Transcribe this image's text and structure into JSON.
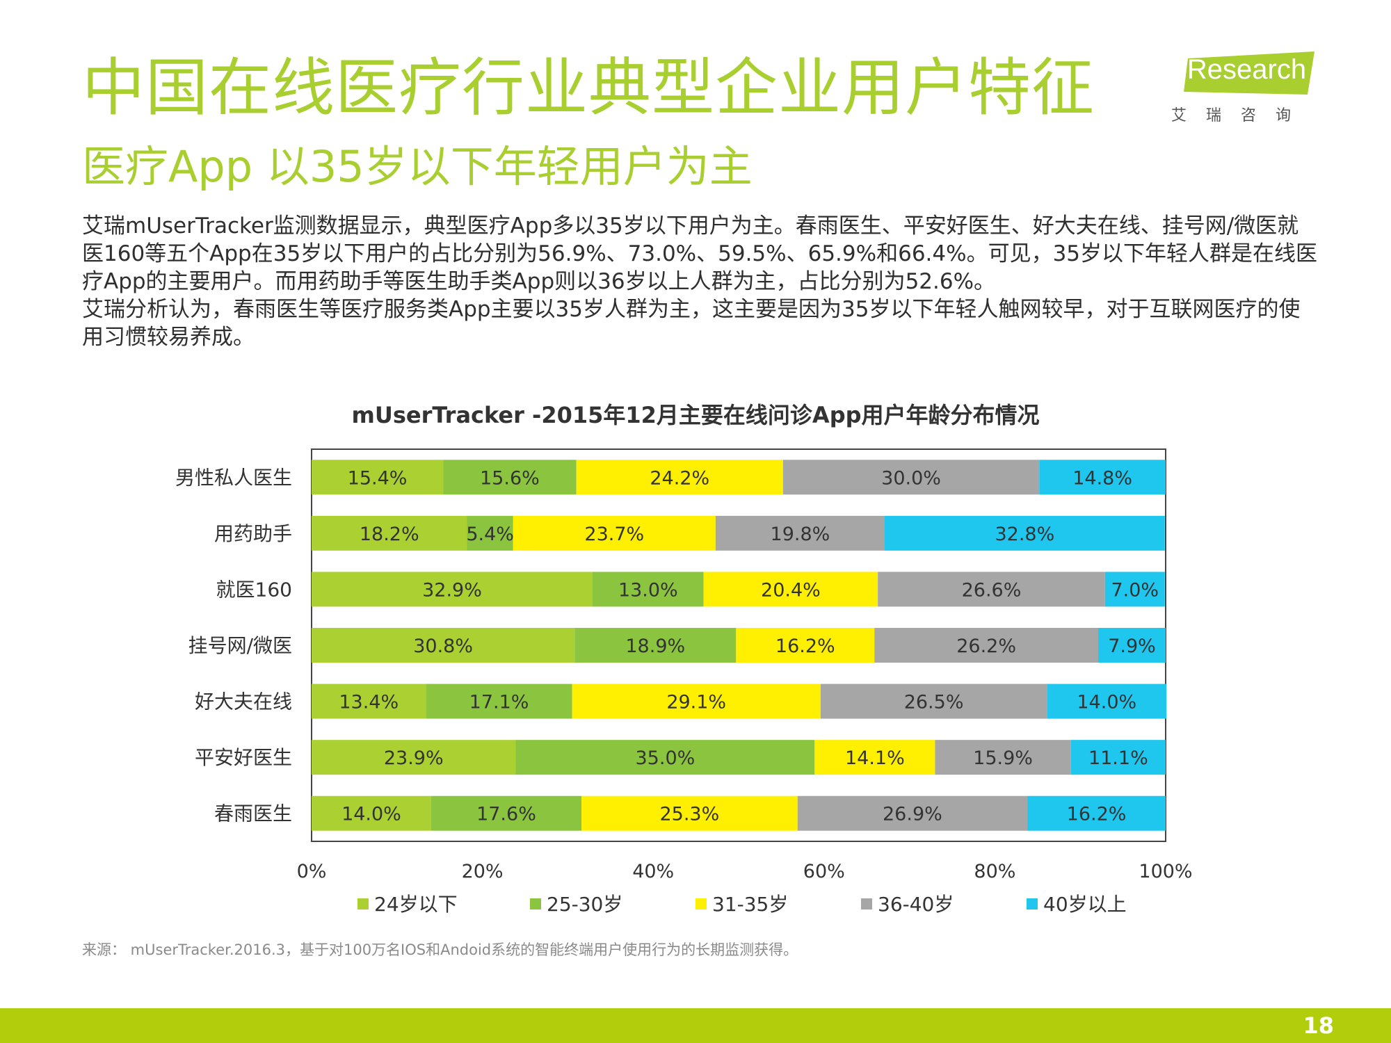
{
  "header": {
    "title": "中国在线医疗行业典型企业用户特征",
    "subtitle": "医疗App 以35岁以下年轻用户为主",
    "logo_text": "iResearch",
    "logo_cn": "艾瑞咨询"
  },
  "body": {
    "para1": "艾瑞mUserTracker监测数据显示，典型医疗App多以35岁以下用户为主。春雨医生、平安好医生、好大夫在线、挂号网/微医就医160等五个App在35岁以下用户的占比分别为56.9%、73.0%、59.5%、65.9%和66.4%。可见，35岁以下年轻人群是在线医疗App的主要用户。而用药助手等医生助手类App则以36岁以上人群为主，占比分别为52.6%。",
    "para2": "艾瑞分析认为，春雨医生等医疗服务类App主要以35岁人群为主，这主要是因为35岁以下年轻人触网较早，对于互联网医疗的使用习惯较易养成。"
  },
  "chart_data": {
    "type": "bar",
    "orientation": "horizontal",
    "stacked": true,
    "title": "mUserTracker -2015年12月主要在线问诊App用户年龄分布情况",
    "categories": [
      "男性私人医生",
      "用药助手",
      "就医160",
      "挂号网/微医",
      "好大夫在线",
      "平安好医生",
      "春雨医生"
    ],
    "series": [
      {
        "name": "24岁以下",
        "color": "#aad032",
        "values": [
          15.4,
          18.2,
          32.9,
          30.8,
          13.4,
          23.9,
          14.0
        ]
      },
      {
        "name": "25-30岁",
        "color": "#8bc53f",
        "values": [
          15.6,
          5.4,
          13.0,
          18.9,
          17.1,
          35.0,
          17.6
        ]
      },
      {
        "name": "31-35岁",
        "color": "#ffef00",
        "values": [
          24.2,
          23.7,
          20.4,
          16.2,
          29.1,
          14.1,
          25.3
        ]
      },
      {
        "name": "36-40岁",
        "color": "#a6a6a6",
        "values": [
          30.0,
          19.8,
          26.6,
          26.2,
          26.5,
          15.9,
          26.9
        ]
      },
      {
        "name": "40岁以上",
        "color": "#1fc6ee",
        "values": [
          14.8,
          32.8,
          7.0,
          7.9,
          14.0,
          11.1,
          16.2
        ]
      }
    ],
    "xticks": [
      "0%",
      "20%",
      "40%",
      "60%",
      "80%",
      "100%"
    ],
    "xlim": [
      0,
      100
    ],
    "legend_position": "bottom"
  },
  "footnote": "来源： mUserTracker.2016.3，基于对100万名IOS和Andoid系统的智能终端用户使用行为的长期监测获得。",
  "page_number": "18"
}
